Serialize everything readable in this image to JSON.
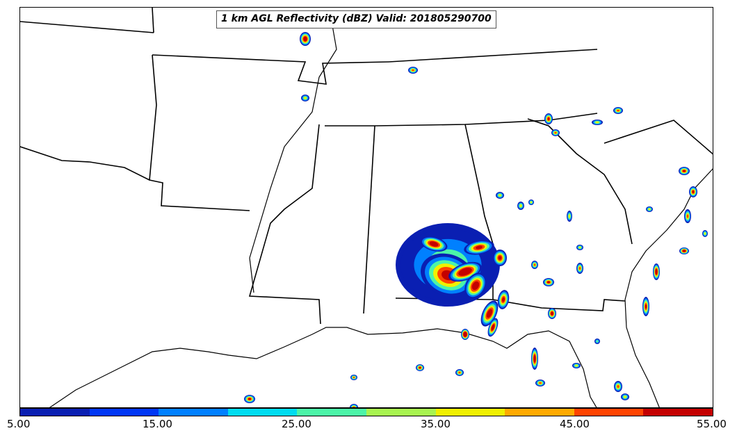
{
  "title": "1 km AGL Reflectivity (dBZ) Valid: 201805290700",
  "colorbar": {
    "colors": [
      "#0a1fb2",
      "#0037f5",
      "#0080ff",
      "#00dcf0",
      "#4cf4a8",
      "#a8f450",
      "#f0f000",
      "#ffaa00",
      "#ff4400",
      "#c40000"
    ],
    "tick_labels": [
      "5.00",
      "15.00",
      "25.00",
      "35.00",
      "45.00",
      "55.00"
    ],
    "min": 5,
    "max": 55,
    "units": "dBZ"
  },
  "palette": {
    "coast": "#000000",
    "state_border": "#000000",
    "background": "#ffffff"
  }
}
